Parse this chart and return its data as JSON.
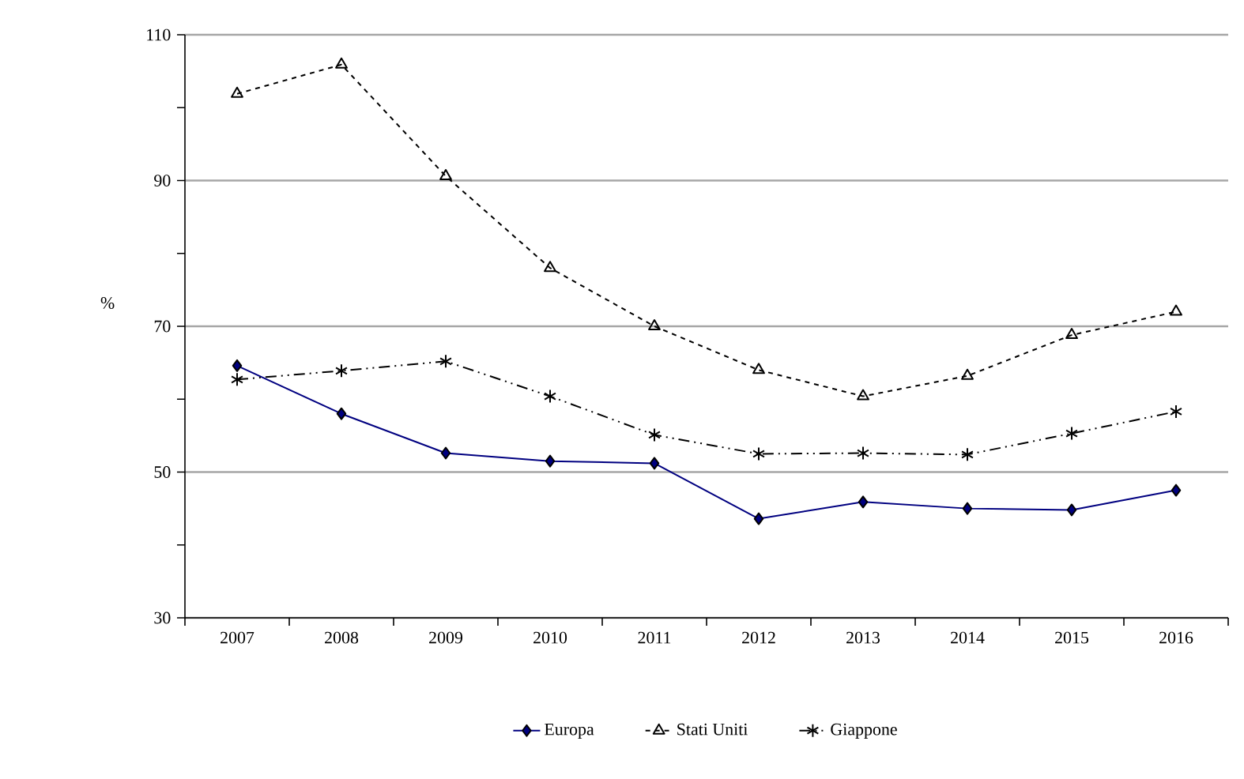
{
  "chart_data": {
    "type": "line",
    "ylabel": "%",
    "categories": [
      "2007",
      "2008",
      "2009",
      "2010",
      "2011",
      "2012",
      "2013",
      "2014",
      "2015",
      "2016"
    ],
    "series": [
      {
        "name": "Europa",
        "color": "#000080",
        "marker": "diamond",
        "line_style": "solid",
        "values": [
          64.6,
          58.0,
          52.6,
          51.5,
          51.2,
          43.6,
          45.9,
          45.0,
          44.8,
          47.5
        ]
      },
      {
        "name": "Stati Uniti",
        "color": "#000000",
        "marker": "triangle",
        "line_style": "dashed",
        "values": [
          101.9,
          105.9,
          90.6,
          78.0,
          70.0,
          64.0,
          60.4,
          63.2,
          68.8,
          72.0
        ]
      },
      {
        "name": "Giappone",
        "color": "#000000",
        "marker": "cross",
        "line_style": "dashdotdotted",
        "values": [
          62.7,
          63.9,
          65.2,
          60.4,
          55.1,
          52.5,
          52.6,
          52.4,
          55.3,
          58.3
        ]
      }
    ],
    "ylim": [
      30,
      110
    ],
    "yticks": [
      30,
      {
        "value": 40,
        "label": null
      },
      50,
      {
        "value": 60,
        "label": null
      },
      70,
      {
        "value": 80,
        "label": null
      },
      90,
      {
        "value": 100,
        "label": null
      },
      110
    ],
    "grid": "y",
    "legend": "bottom"
  }
}
